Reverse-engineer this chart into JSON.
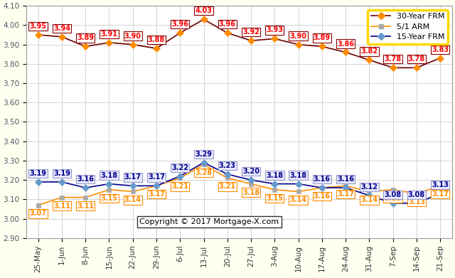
{
  "x_labels": [
    "25-May",
    "1-Jun",
    "8-Jun",
    "15-Jun",
    "22-Jun",
    "29-Jun",
    "6-Jul",
    "13-Jul",
    "20-Jul",
    "27-Jul",
    "3-Aug",
    "10-Aug",
    "17-Aug",
    "24-Aug",
    "31-Aug",
    "7-Sep",
    "14-Sep",
    "21-Sep"
  ],
  "frm30": [
    3.95,
    3.94,
    3.89,
    3.91,
    3.9,
    3.88,
    3.96,
    4.03,
    3.96,
    3.92,
    3.93,
    3.9,
    3.89,
    3.86,
    3.82,
    3.78,
    3.78,
    3.83
  ],
  "arm51": [
    3.07,
    3.11,
    3.11,
    3.15,
    3.14,
    3.17,
    3.21,
    3.28,
    3.21,
    3.18,
    3.15,
    3.14,
    3.16,
    3.17,
    3.14,
    3.15,
    3.13,
    3.17
  ],
  "frm15": [
    3.19,
    3.19,
    3.16,
    3.18,
    3.17,
    3.17,
    3.22,
    3.29,
    3.23,
    3.2,
    3.18,
    3.18,
    3.16,
    3.16,
    3.12,
    3.08,
    3.08,
    3.13
  ],
  "frm30_line_color": "#6B0000",
  "frm30_marker_color": "#FF8C00",
  "arm51_line_color": "#FF8C00",
  "arm51_marker_color": "#A9A9A9",
  "frm15_line_color": "#00008B",
  "frm15_marker_color": "#6699CC",
  "frm30_text_color": "#FF0000",
  "frm30_box_edge": "#8B0000",
  "arm51_text_color": "#FF8C00",
  "arm51_box_edge": "#FF8C00",
  "frm15_text_color": "#00008B",
  "frm15_box_edge": "#9999CC",
  "frm15_box_face": "#E8E8FF",
  "background_color": "#FFFFF0",
  "plot_bg": "#FFFFFF",
  "legend_border_color": "#FFD700",
  "grid_color": "#CCCCCC",
  "ylim": [
    2.9,
    4.1
  ],
  "yticks": [
    2.9,
    3.0,
    3.1,
    3.2,
    3.3,
    3.4,
    3.5,
    3.6,
    3.7,
    3.8,
    3.9,
    4.0,
    4.1
  ],
  "copyright": "Copyright © 2017 Mortgage-X.com",
  "legend_labels": [
    "30-Year FRM",
    "5/1 ARM",
    "15-Year FRM"
  ],
  "label_fontsize": 7,
  "tick_fontsize": 7.5,
  "legend_fontsize": 8
}
